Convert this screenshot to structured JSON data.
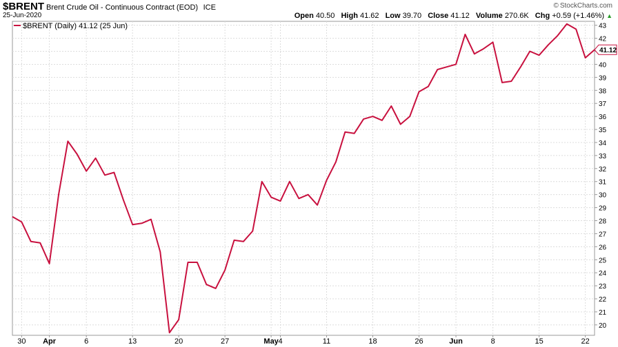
{
  "header": {
    "symbol": "$BRENT",
    "description": "Brent Crude Oil - Continuous Contract (EOD)",
    "exchange": "ICE",
    "date": "25-Jun-2020",
    "brand": "StockCharts.com",
    "brand_icon": "copyright-icon",
    "quote": {
      "open_label": "Open",
      "open": "40.50",
      "high_label": "High",
      "high": "41.62",
      "low_label": "Low",
      "low": "39.70",
      "close_label": "Close",
      "close": "41.12",
      "volume_label": "Volume",
      "volume": "270.6K",
      "chg_label": "Chg",
      "chg": "+0.59 (+1.46%)",
      "chg_icon": "up-triangle-icon"
    }
  },
  "chart_data": {
    "type": "line",
    "legend": "$BRENT (Daily) 41.12 (25 Jun)",
    "legend_placement": "top-left",
    "series": [
      {
        "name": "$BRENT (Daily) 41.12 (25 Jun)",
        "color": "#c8103e",
        "values": [
          28.3,
          27.9,
          26.4,
          26.3,
          24.7,
          30.0,
          34.1,
          33.1,
          31.8,
          32.8,
          31.5,
          31.7,
          29.6,
          27.7,
          27.8,
          28.1,
          25.6,
          19.4,
          20.4,
          24.8,
          24.8,
          23.1,
          22.8,
          24.2,
          26.5,
          26.4,
          27.2,
          31.0,
          29.8,
          29.5,
          31.0,
          29.7,
          30.0,
          29.2,
          31.1,
          32.5,
          34.8,
          34.7,
          35.8,
          36.0,
          35.7,
          36.8,
          35.4,
          36.0,
          37.9,
          38.3,
          39.6,
          39.8,
          40.0,
          42.3,
          40.8,
          41.2,
          41.7,
          38.6,
          38.7,
          39.8,
          41.0,
          40.7,
          41.5,
          42.2,
          43.1,
          42.7,
          40.5,
          41.12
        ]
      }
    ],
    "x_tick_labels": [
      {
        "label": "30",
        "index": 1,
        "bold": false
      },
      {
        "label": "Apr",
        "index": 4,
        "bold": true
      },
      {
        "label": "6",
        "index": 8,
        "bold": false
      },
      {
        "label": "13",
        "index": 13,
        "bold": false
      },
      {
        "label": "20",
        "index": 18,
        "bold": false
      },
      {
        "label": "27",
        "index": 23,
        "bold": false
      },
      {
        "label": "May",
        "index": 28,
        "bold": true
      },
      {
        "label": "4",
        "index": 29,
        "bold": false
      },
      {
        "label": "11",
        "index": 34,
        "bold": false
      },
      {
        "label": "18",
        "index": 39,
        "bold": false
      },
      {
        "label": "26",
        "index": 44,
        "bold": false
      },
      {
        "label": "Jun",
        "index": 48,
        "bold": true
      },
      {
        "label": "8",
        "index": 52,
        "bold": false
      },
      {
        "label": "15",
        "index": 57,
        "bold": false
      },
      {
        "label": "22",
        "index": 62,
        "bold": false
      }
    ],
    "y_ticks": [
      20,
      21,
      22,
      23,
      24,
      25,
      26,
      27,
      28,
      29,
      30,
      31,
      32,
      33,
      34,
      35,
      36,
      37,
      38,
      39,
      40,
      41,
      42,
      43
    ],
    "ylim": [
      19.2,
      43.3
    ],
    "last_value_label": "41.12",
    "grid": true
  }
}
